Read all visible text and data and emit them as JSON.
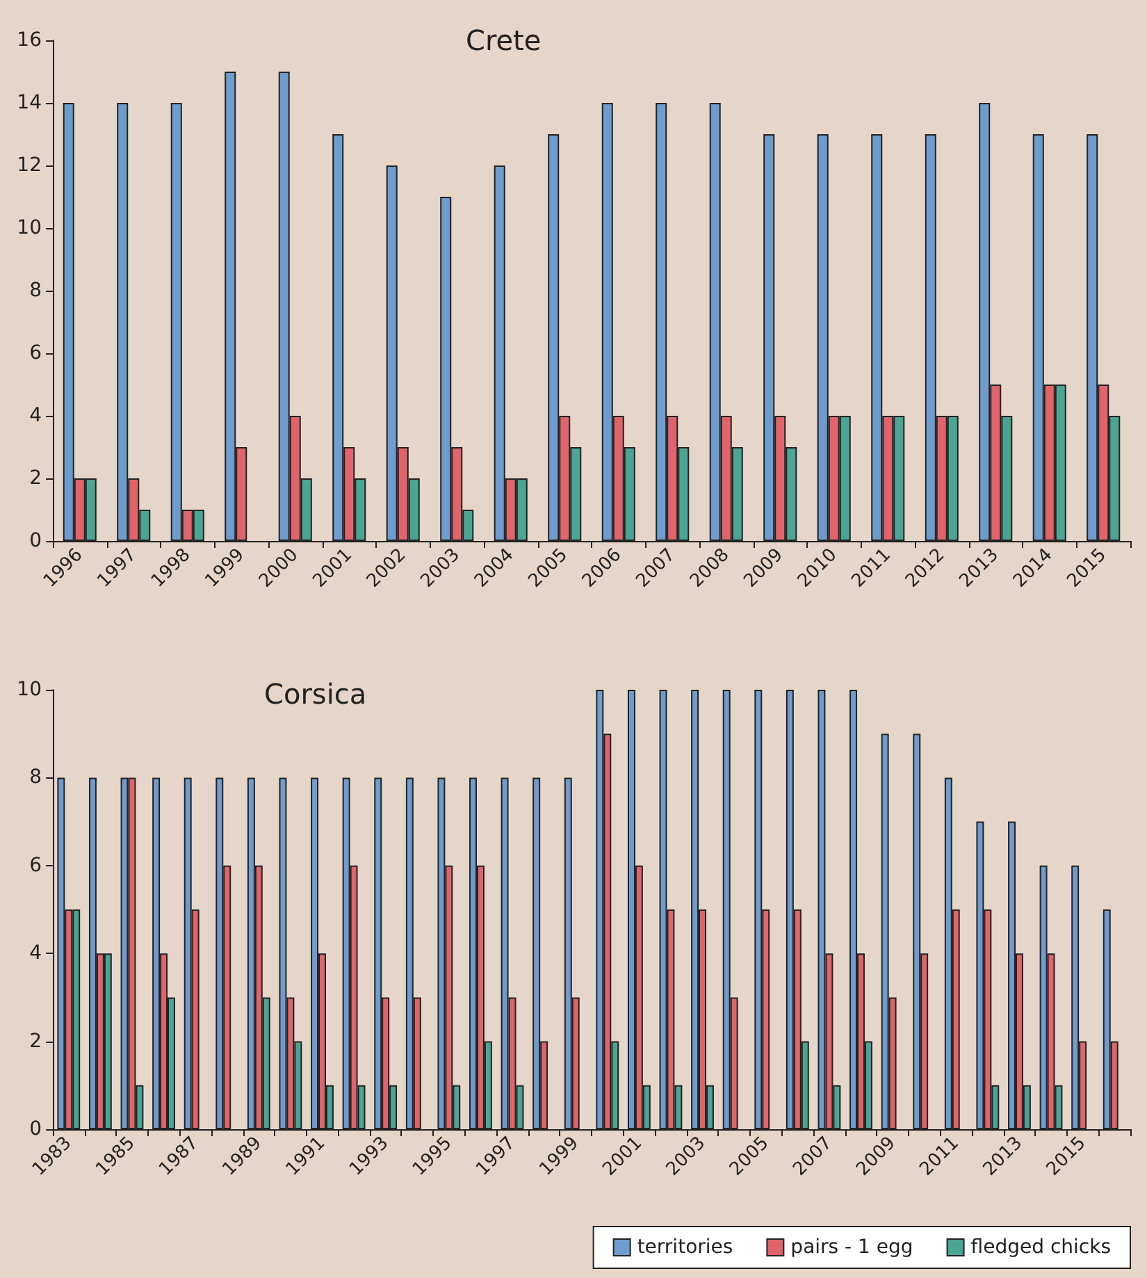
{
  "chart_data": [
    {
      "type": "bar",
      "title": "Crete",
      "categories": [
        "1996",
        "1997",
        "1998",
        "1999",
        "2000",
        "2001",
        "2002",
        "2003",
        "2004",
        "2005",
        "2006",
        "2007",
        "2008",
        "2009",
        "2010",
        "2011",
        "2012",
        "2013",
        "2014",
        "2015"
      ],
      "ylim": [
        0,
        16
      ],
      "yticks": [
        0,
        2,
        4,
        6,
        8,
        10,
        12,
        14,
        16
      ],
      "legend": false,
      "series": [
        {
          "color": "#6f9ccf",
          "values": [
            14,
            14,
            14,
            15,
            15,
            13,
            12,
            11,
            12,
            13,
            14,
            14,
            14,
            13,
            13,
            13,
            13,
            14,
            13,
            13
          ]
        },
        {
          "color": "#e0646a",
          "values": [
            2,
            2,
            1,
            3,
            4,
            3,
            3,
            3,
            2,
            4,
            4,
            4,
            4,
            4,
            4,
            4,
            4,
            5,
            5,
            5
          ]
        },
        {
          "color": "#4aa594",
          "values": [
            2,
            1,
            1,
            0,
            2,
            2,
            2,
            1,
            2,
            3,
            3,
            3,
            3,
            3,
            4,
            4,
            4,
            4,
            5,
            4
          ]
        }
      ]
    },
    {
      "type": "bar",
      "title": "Corsica",
      "categories": [
        "1983",
        null,
        "1985",
        null,
        "1987",
        null,
        "1989",
        null,
        "1991",
        null,
        "1993",
        null,
        "1995",
        null,
        "1997",
        null,
        "1999",
        null,
        "2001",
        null,
        "2003",
        null,
        "2005",
        null,
        "2007",
        null,
        "2009",
        null,
        "2011",
        null,
        "2013",
        null,
        "2015",
        null
      ],
      "ylim": [
        0,
        10
      ],
      "yticks": [
        0,
        2,
        4,
        6,
        8,
        10
      ],
      "legend": "bottom",
      "series": [
        {
          "name": "territories",
          "color": "#6f9ccf",
          "values": [
            8,
            8,
            8,
            8,
            8,
            8,
            8,
            8,
            8,
            8,
            8,
            8,
            8,
            8,
            8,
            8,
            8,
            10,
            10,
            10,
            10,
            10,
            10,
            10,
            10,
            10,
            9,
            9,
            8,
            7,
            7,
            6,
            6,
            5
          ]
        },
        {
          "name": "pairs - 1 egg",
          "color": "#e0646a",
          "values": [
            5,
            4,
            8,
            4,
            5,
            6,
            6,
            3,
            4,
            6,
            3,
            3,
            6,
            6,
            3,
            2,
            3,
            9,
            6,
            5,
            5,
            3,
            5,
            5,
            4,
            4,
            3,
            4,
            5,
            5,
            4,
            4,
            2,
            2
          ]
        },
        {
          "name": "fledged chicks",
          "color": "#4aa594",
          "values": [
            5,
            4,
            1,
            3,
            0,
            0,
            3,
            2,
            1,
            1,
            1,
            0,
            1,
            2,
            1,
            0,
            0,
            2,
            1,
            1,
            1,
            0,
            0,
            2,
            1,
            2,
            0,
            0,
            0,
            1,
            1,
            1,
            0,
            0
          ]
        }
      ]
    }
  ]
}
